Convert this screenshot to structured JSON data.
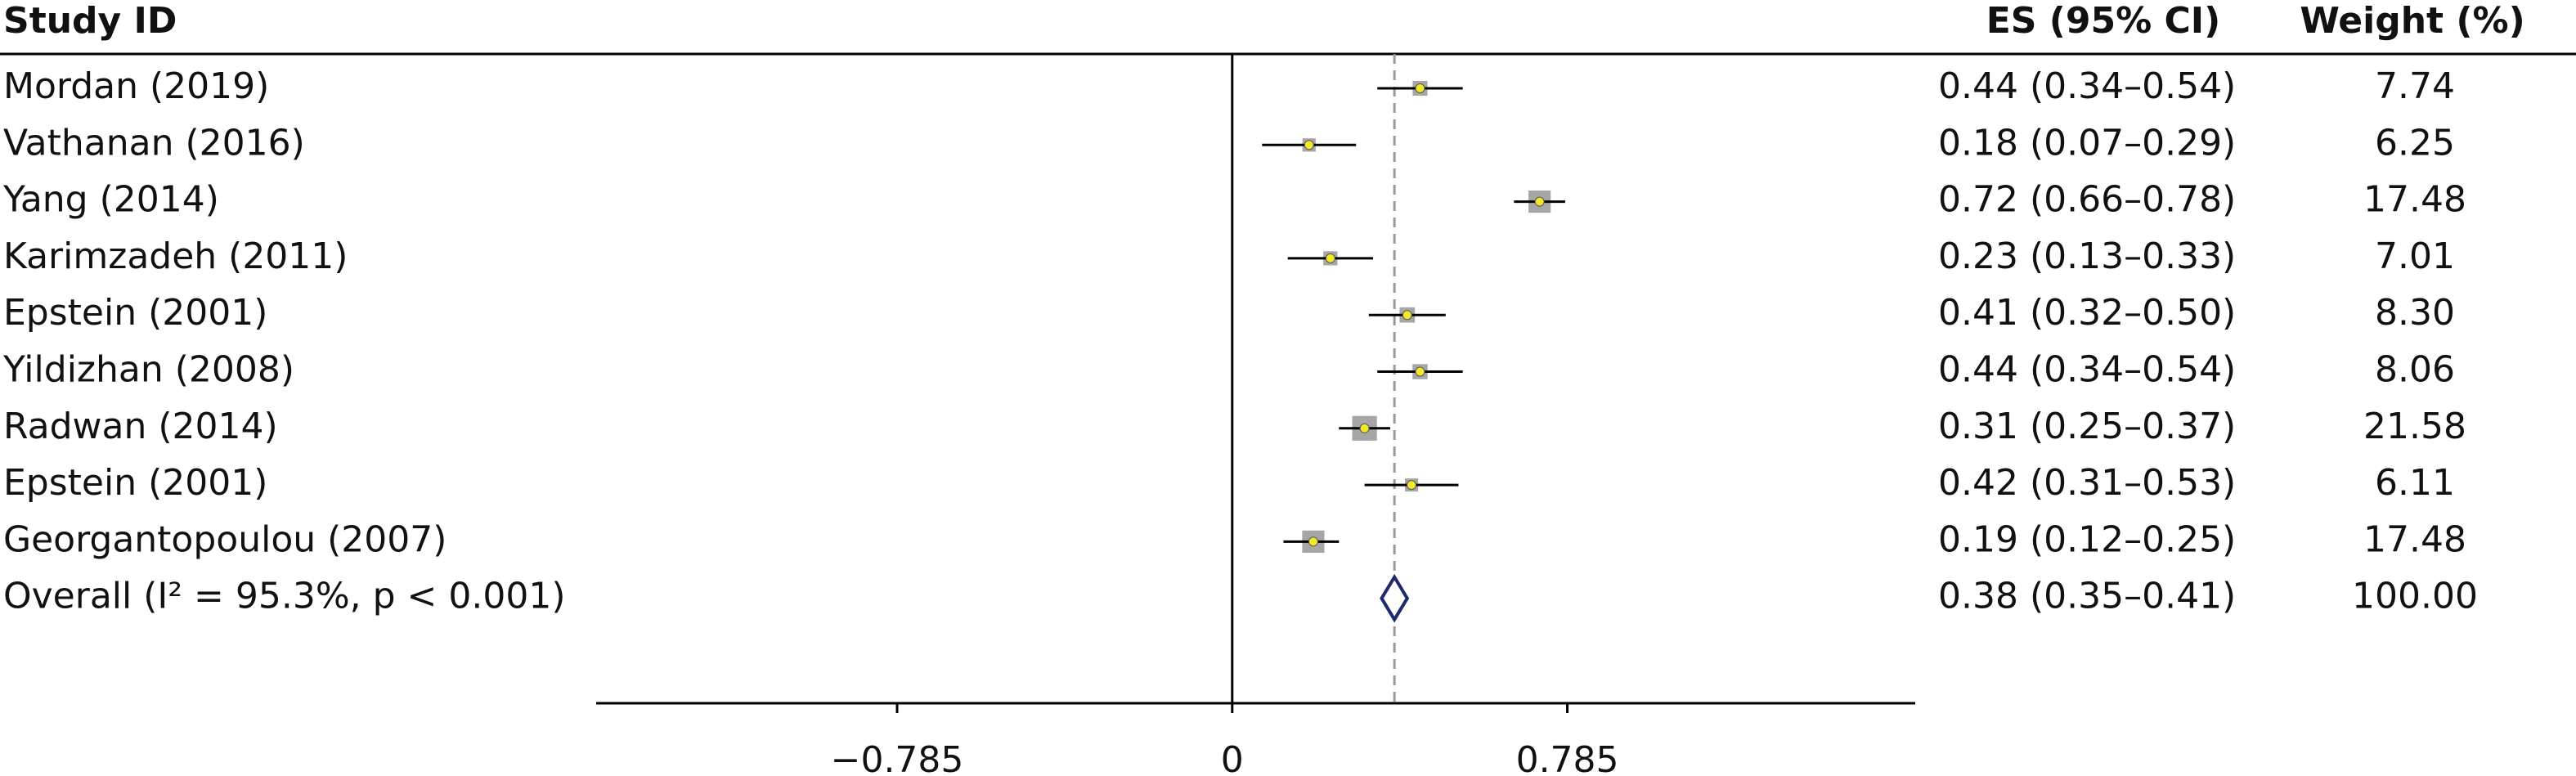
{
  "chart_data": {
    "type": "forest",
    "columns": {
      "study": "Study ID",
      "es": "ES (95% CI)",
      "weight": "Weight (%)"
    },
    "categories": [
      "Mordan (2019)",
      "Vathanan (2016)",
      "Yang (2014)",
      "Karimzadeh (2011)",
      "Epstein (2001)",
      "Yildizhan (2008)",
      "Radwan (2014)",
      "Epstein (2001)",
      "Georgantopoulou (2007)"
    ],
    "values": [
      0.44,
      0.18,
      0.72,
      0.23,
      0.41,
      0.44,
      0.31,
      0.42,
      0.19
    ],
    "lower": [
      0.34,
      0.07,
      0.66,
      0.13,
      0.32,
      0.34,
      0.25,
      0.31,
      0.12
    ],
    "upper": [
      0.54,
      0.29,
      0.78,
      0.33,
      0.5,
      0.54,
      0.37,
      0.53,
      0.25
    ],
    "value_labels": [
      "0.44 (0.34–0.54)",
      "0.18 (0.07–0.29)",
      "0.72 (0.66–0.78)",
      "0.23 (0.13–0.33)",
      "0.41 (0.32–0.50)",
      "0.44 (0.34–0.54)",
      "0.31 (0.25–0.37)",
      "0.42 (0.31–0.53)",
      "0.19 (0.12–0.25)"
    ],
    "weights": [
      7.74,
      6.25,
      17.48,
      7.01,
      8.3,
      8.06,
      21.58,
      6.11,
      17.48
    ],
    "weight_labels": [
      "7.74",
      "6.25",
      "17.48",
      "7.01",
      "8.30",
      "8.06",
      "21.58",
      "6.11",
      "17.48"
    ],
    "overall": {
      "label": "Overall (I² = 95.3%, p < 0.001)",
      "value": 0.38,
      "lower": 0.35,
      "upper": 0.41,
      "value_label": "0.38 (0.35–0.41)",
      "weight_label": "100.00"
    },
    "xlim": [
      -1.49,
      1.6
    ],
    "xticks": [
      {
        "value": -0.785,
        "label": "−0.785"
      },
      0,
      0.785
    ],
    "null_line": 0,
    "colors": {
      "square": "#a6a6a6",
      "point": "#f2e829",
      "line": "#000000",
      "diamond": "#1f2a6b",
      "reference": "#9a9a9a"
    }
  }
}
